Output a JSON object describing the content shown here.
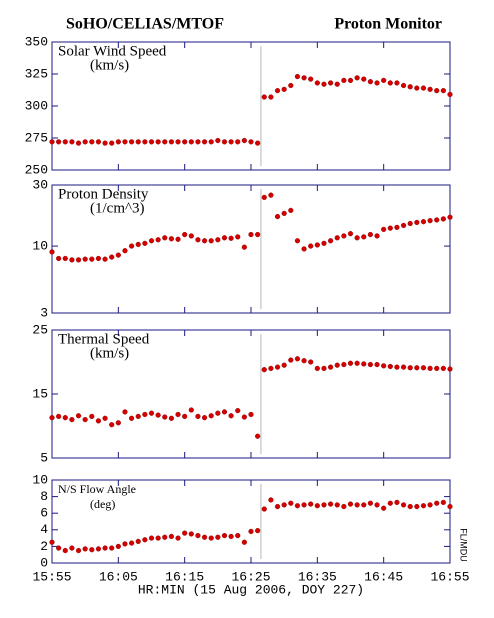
{
  "title_left": "SoHO/CELIAS/MTOF",
  "title_right": "Proton Monitor",
  "xlabel": "HR:MIN (15 Aug 2006, DOY 227)",
  "side_label": "FL/MDU",
  "event_x": 31.5,
  "color": "#d40000",
  "x_axis": {
    "xlim": [
      0,
      60
    ],
    "xticks": [
      {
        "value": 0,
        "label": "15:55"
      },
      {
        "value": 10,
        "label": "16:05"
      },
      {
        "value": 20,
        "label": "16:15"
      },
      {
        "value": 30,
        "label": "16:25"
      },
      {
        "value": 40,
        "label": "16:35"
      },
      {
        "value": 50,
        "label": "16:45"
      },
      {
        "value": 60,
        "label": "16:55"
      }
    ]
  },
  "chart_data": [
    {
      "type": "scatter",
      "title": "Solar Wind Speed",
      "units": "(km/s)",
      "ylim": [
        250,
        350
      ],
      "yticks": [
        250,
        275,
        300,
        325,
        350
      ],
      "log": false,
      "x": [
        0,
        1,
        2,
        3,
        4,
        5,
        6,
        7,
        8,
        9,
        10,
        11,
        12,
        13,
        14,
        15,
        16,
        17,
        18,
        19,
        20,
        21,
        22,
        23,
        24,
        25,
        26,
        27,
        28,
        29,
        30,
        31,
        32,
        33,
        34,
        35,
        36,
        37,
        38,
        39,
        40,
        41,
        42,
        43,
        44,
        45,
        46,
        47,
        48,
        49,
        50,
        51,
        52,
        53,
        54,
        55,
        56,
        57,
        58,
        59,
        60
      ],
      "values": [
        272,
        272,
        272,
        272,
        271,
        272,
        272,
        272,
        271,
        271,
        272,
        272,
        272,
        272,
        272,
        272,
        272,
        272,
        272,
        272,
        272,
        272,
        272,
        272,
        272,
        273,
        272,
        272,
        272,
        273,
        272,
        271,
        307,
        307,
        312,
        313,
        316,
        323,
        322,
        321,
        318,
        317,
        318,
        317,
        320,
        320,
        322,
        321,
        319,
        318,
        320,
        318,
        318,
        316,
        315,
        314,
        314,
        313,
        312,
        312,
        309
      ]
    },
    {
      "type": "scatter",
      "title": "Proton Density",
      "units": "(1/cm^3)",
      "ylim": [
        3,
        30
      ],
      "yticks": [
        3,
        10,
        30
      ],
      "log": true,
      "x": [
        0,
        1,
        2,
        3,
        4,
        5,
        6,
        7,
        8,
        9,
        10,
        11,
        12,
        13,
        14,
        15,
        16,
        17,
        18,
        19,
        20,
        21,
        22,
        23,
        24,
        25,
        26,
        27,
        28,
        29,
        30,
        31,
        32,
        33,
        34,
        35,
        36,
        37,
        38,
        39,
        40,
        41,
        42,
        43,
        44,
        45,
        46,
        47,
        48,
        49,
        50,
        51,
        52,
        53,
        54,
        55,
        56,
        57,
        58,
        59,
        60
      ],
      "values": [
        9,
        8,
        8,
        7.8,
        7.8,
        7.9,
        7.9,
        8,
        7.9,
        8.2,
        8.5,
        9.2,
        10,
        10.3,
        10.5,
        11,
        11.2,
        11.6,
        11.4,
        11.3,
        12.3,
        12,
        11.2,
        11,
        11,
        11.2,
        11.6,
        11.5,
        11.8,
        9.8,
        12.3,
        12.3,
        24,
        25,
        17,
        18,
        19,
        11,
        9.5,
        10,
        10.2,
        10.5,
        11,
        11.6,
        12,
        12.5,
        11.6,
        11.8,
        12.3,
        12,
        13.5,
        13.8,
        14,
        14.5,
        15,
        15.3,
        15.5,
        15.8,
        16,
        16.3,
        16.8
      ]
    },
    {
      "type": "scatter",
      "title": "Thermal Speed",
      "units": "(km/s)",
      "ylim": [
        5,
        25
      ],
      "yticks": [
        5,
        15,
        25
      ],
      "log": false,
      "x": [
        0,
        1,
        2,
        3,
        4,
        5,
        6,
        7,
        8,
        9,
        10,
        11,
        12,
        13,
        14,
        15,
        16,
        17,
        18,
        19,
        20,
        21,
        22,
        23,
        24,
        25,
        26,
        27,
        28,
        29,
        30,
        31,
        32,
        33,
        34,
        35,
        36,
        37,
        38,
        39,
        40,
        41,
        42,
        43,
        44,
        45,
        46,
        47,
        48,
        49,
        50,
        51,
        52,
        53,
        54,
        55,
        56,
        57,
        58,
        59,
        60
      ],
      "values": [
        11.3,
        11.5,
        11.3,
        11,
        11.6,
        11,
        11.5,
        10.8,
        11.2,
        10.2,
        10.5,
        12.2,
        11.2,
        11.5,
        11.8,
        12,
        11.7,
        11.4,
        11.2,
        11.8,
        11.5,
        12.5,
        11.5,
        11.3,
        11.6,
        12,
        12.2,
        11.6,
        12.4,
        11.4,
        11.8,
        8.4,
        18.8,
        19,
        19.2,
        19.5,
        20.3,
        20.5,
        20.2,
        20,
        19,
        19,
        19.2,
        19.5,
        19.6,
        19.8,
        19.8,
        19.7,
        19.6,
        19.6,
        19.4,
        19.3,
        19.2,
        19.2,
        19.1,
        19.1,
        19.1,
        19,
        19,
        19,
        18.9
      ]
    },
    {
      "type": "scatter",
      "title": "N/S Flow Angle",
      "units": "(deg)",
      "ylim": [
        0,
        10
      ],
      "yticks": [
        0,
        2,
        4,
        6,
        8,
        10
      ],
      "log": false,
      "x": [
        0,
        1,
        2,
        3,
        4,
        5,
        6,
        7,
        8,
        9,
        10,
        11,
        12,
        13,
        14,
        15,
        16,
        17,
        18,
        19,
        20,
        21,
        22,
        23,
        24,
        25,
        26,
        27,
        28,
        29,
        30,
        31,
        32,
        33,
        34,
        35,
        36,
        37,
        38,
        39,
        40,
        41,
        42,
        43,
        44,
        45,
        46,
        47,
        48,
        49,
        50,
        51,
        52,
        53,
        54,
        55,
        56,
        57,
        58,
        59,
        60
      ],
      "values": [
        2.5,
        1.8,
        1.5,
        1.8,
        1.5,
        1.7,
        1.6,
        1.7,
        1.8,
        1.8,
        2,
        2.3,
        2.4,
        2.6,
        2.8,
        3,
        3,
        3.1,
        3.2,
        3,
        3.6,
        3.5,
        3.3,
        3.1,
        3,
        3.1,
        3.3,
        3.2,
        3.3,
        2.5,
        3.8,
        3.9,
        6.5,
        7.6,
        6.8,
        7,
        7.2,
        6.9,
        7,
        7.1,
        6.9,
        7,
        7.1,
        7,
        6.8,
        7.1,
        7,
        7,
        7.2,
        7,
        6.6,
        7.2,
        7.3,
        7,
        6.8,
        6.8,
        6.9,
        7,
        7.2,
        7.3,
        6.8
      ]
    }
  ]
}
